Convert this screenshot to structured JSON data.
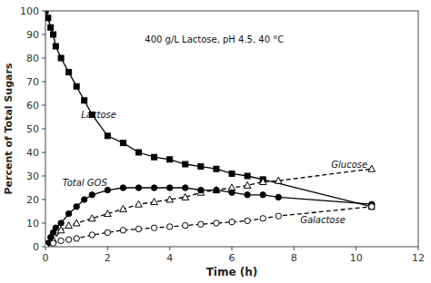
{
  "chart_data": {
    "type": "line",
    "xlabel": "Time (h)",
    "ylabel": "Percent of Total Sugars",
    "xlim": [
      0,
      12
    ],
    "ylim": [
      0,
      100
    ],
    "xticks": [
      0,
      2,
      4,
      6,
      8,
      10,
      12
    ],
    "yticks": [
      0,
      10,
      20,
      30,
      40,
      50,
      60,
      70,
      80,
      90,
      100
    ],
    "grid": false,
    "series": [
      {
        "name": "Lactose",
        "color": "#000000",
        "marker": "filled-square",
        "line_style": "solid",
        "label_x": 1.15,
        "label_y": 56,
        "x": [
          0,
          0.083,
          0.167,
          0.25,
          0.33,
          0.5,
          0.75,
          1.0,
          1.25,
          1.5,
          2.0,
          2.5,
          3.0,
          3.5,
          4.0,
          4.5,
          5.0,
          5.5,
          6.0,
          6.5,
          7.0,
          10.5
        ],
        "values": [
          100,
          97,
          93,
          90,
          85,
          80,
          74,
          68,
          62,
          56,
          47,
          44,
          40,
          38,
          37,
          35,
          34,
          33,
          31,
          30,
          28.5,
          17
        ]
      },
      {
        "name": "Glucose",
        "color": "#000000",
        "marker": "open-triangle",
        "line_style": "dashed",
        "label_x": 9.2,
        "label_y": 35,
        "x": [
          0,
          0.25,
          0.5,
          0.75,
          1.0,
          1.5,
          2.0,
          2.5,
          3.0,
          3.5,
          4.0,
          4.5,
          5.0,
          5.5,
          6.0,
          6.5,
          7.0,
          7.5,
          10.5
        ],
        "values": [
          0,
          3,
          7,
          9,
          10,
          12,
          14,
          16,
          18,
          19,
          20,
          21,
          23,
          24,
          25,
          26,
          27.5,
          28,
          33
        ]
      },
      {
        "name": "Total GOS",
        "color": "#000000",
        "marker": "filled-circle",
        "line_style": "solid",
        "label_x": 0.55,
        "label_y": 27.5,
        "x": [
          0,
          0.083,
          0.167,
          0.25,
          0.33,
          0.5,
          0.75,
          1.0,
          1.25,
          1.5,
          2.0,
          2.5,
          3.0,
          3.5,
          4.0,
          4.5,
          5.0,
          5.5,
          6.0,
          6.5,
          7.0,
          7.5,
          10.5
        ],
        "values": [
          0,
          1.5,
          4,
          6,
          8,
          10,
          14,
          17,
          20,
          22,
          24,
          25,
          25,
          25,
          25,
          25,
          24,
          24,
          23,
          22,
          22,
          21,
          18
        ]
      },
      {
        "name": "Galactose",
        "color": "#000000",
        "marker": "open-circle",
        "line_style": "dashed",
        "label_x": 8.2,
        "label_y": 11.5,
        "x": [
          0,
          0.25,
          0.5,
          0.75,
          1.0,
          1.5,
          2.0,
          2.5,
          3.0,
          3.5,
          4.0,
          4.5,
          5.0,
          5.5,
          6.0,
          6.5,
          7.0,
          7.5,
          10.5
        ],
        "values": [
          0,
          1.5,
          2.5,
          3,
          3.5,
          5,
          6,
          7,
          7.5,
          8,
          8.5,
          9,
          9.5,
          10,
          10.5,
          11,
          12,
          13,
          17
        ]
      }
    ],
    "annotations": [
      {
        "text": "400 g/L Lactose, pH 4.5, 40 °C",
        "x": 3.2,
        "y": 88
      }
    ]
  }
}
